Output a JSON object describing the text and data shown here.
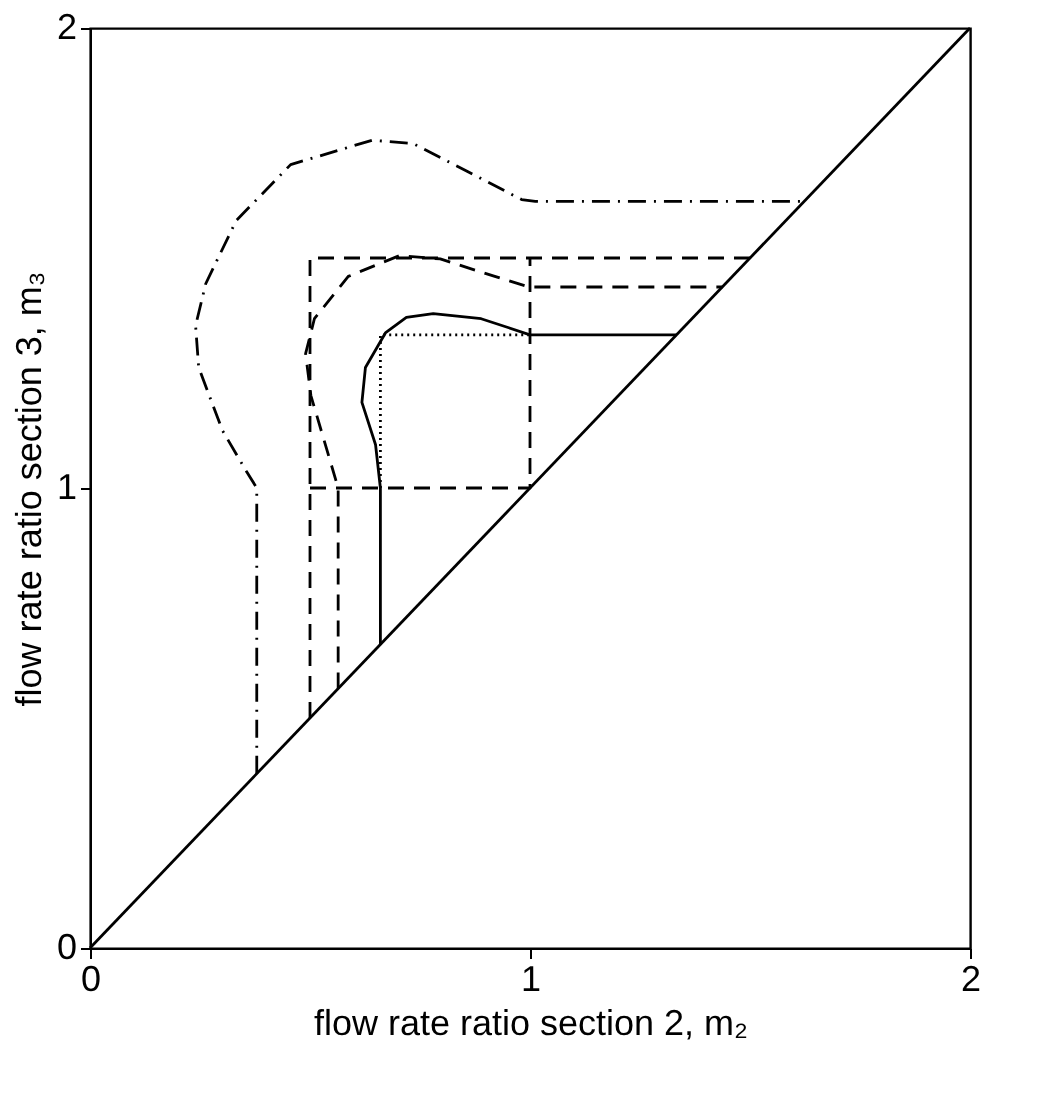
{
  "chart_data": {
    "type": "line",
    "xlabel": "flow rate ratio section 2, m₂",
    "ylabel": "flow rate ratio section 3, m₃",
    "xlim": [
      0,
      2
    ],
    "ylim": [
      0,
      2
    ],
    "xticks": [
      0,
      1,
      2
    ],
    "yticks": [
      0,
      1,
      2
    ],
    "series": [
      {
        "color": "#000000",
        "line_style": "solid",
        "x": [
          0,
          2
        ],
        "values": [
          0,
          2
        ]
      },
      {
        "color": "#000000",
        "line_style": "dashed",
        "x": [
          0.5,
          0.5,
          1.5
        ],
        "values": [
          0.5,
          1.5,
          1.5
        ]
      },
      {
        "color": "#000000",
        "line_style": "dashed",
        "x": [
          0.5,
          1,
          1
        ],
        "values": [
          1,
          1,
          1.5
        ]
      },
      {
        "color": "#000000",
        "line_style": "dotted",
        "x": [
          0.66,
          0.66,
          1
        ],
        "values": [
          1,
          1.333,
          1.333
        ]
      },
      {
        "color": "#000000",
        "line_style": "solid",
        "x": [
          0.66,
          0.66,
          0.649,
          0.618,
          0.626,
          0.672,
          0.719,
          0.78,
          0.889,
          0.95,
          1,
          1.333
        ],
        "values": [
          0.66,
          1,
          1.094,
          1.186,
          1.262,
          1.338,
          1.371,
          1.379,
          1.368,
          1.349,
          1.333,
          1.333
        ]
      },
      {
        "color": "#000000",
        "line_style": "dashed",
        "x": [
          0.564,
          0.564,
          0.502,
          0.49,
          0.51,
          0.587,
          0.703,
          0.796,
          0.92,
          0.997,
          1.437
        ],
        "values": [
          0.564,
          1,
          1.201,
          1.292,
          1.368,
          1.46,
          1.505,
          1.498,
          1.46,
          1.437,
          1.437
        ]
      },
      {
        "color": "#000000",
        "line_style": "dashdot",
        "x": [
          0.379,
          0.379,
          0.355,
          0.301,
          0.247,
          0.24,
          0.263,
          0.332,
          0.456,
          0.641,
          0.734,
          0.858,
          0.981,
          1.012,
          1.623
        ],
        "values": [
          0.379,
          1,
          1.037,
          1.125,
          1.262,
          1.353,
          1.444,
          1.581,
          1.703,
          1.756,
          1.749,
          1.688,
          1.627,
          1.623,
          1.623
        ]
      }
    ]
  }
}
